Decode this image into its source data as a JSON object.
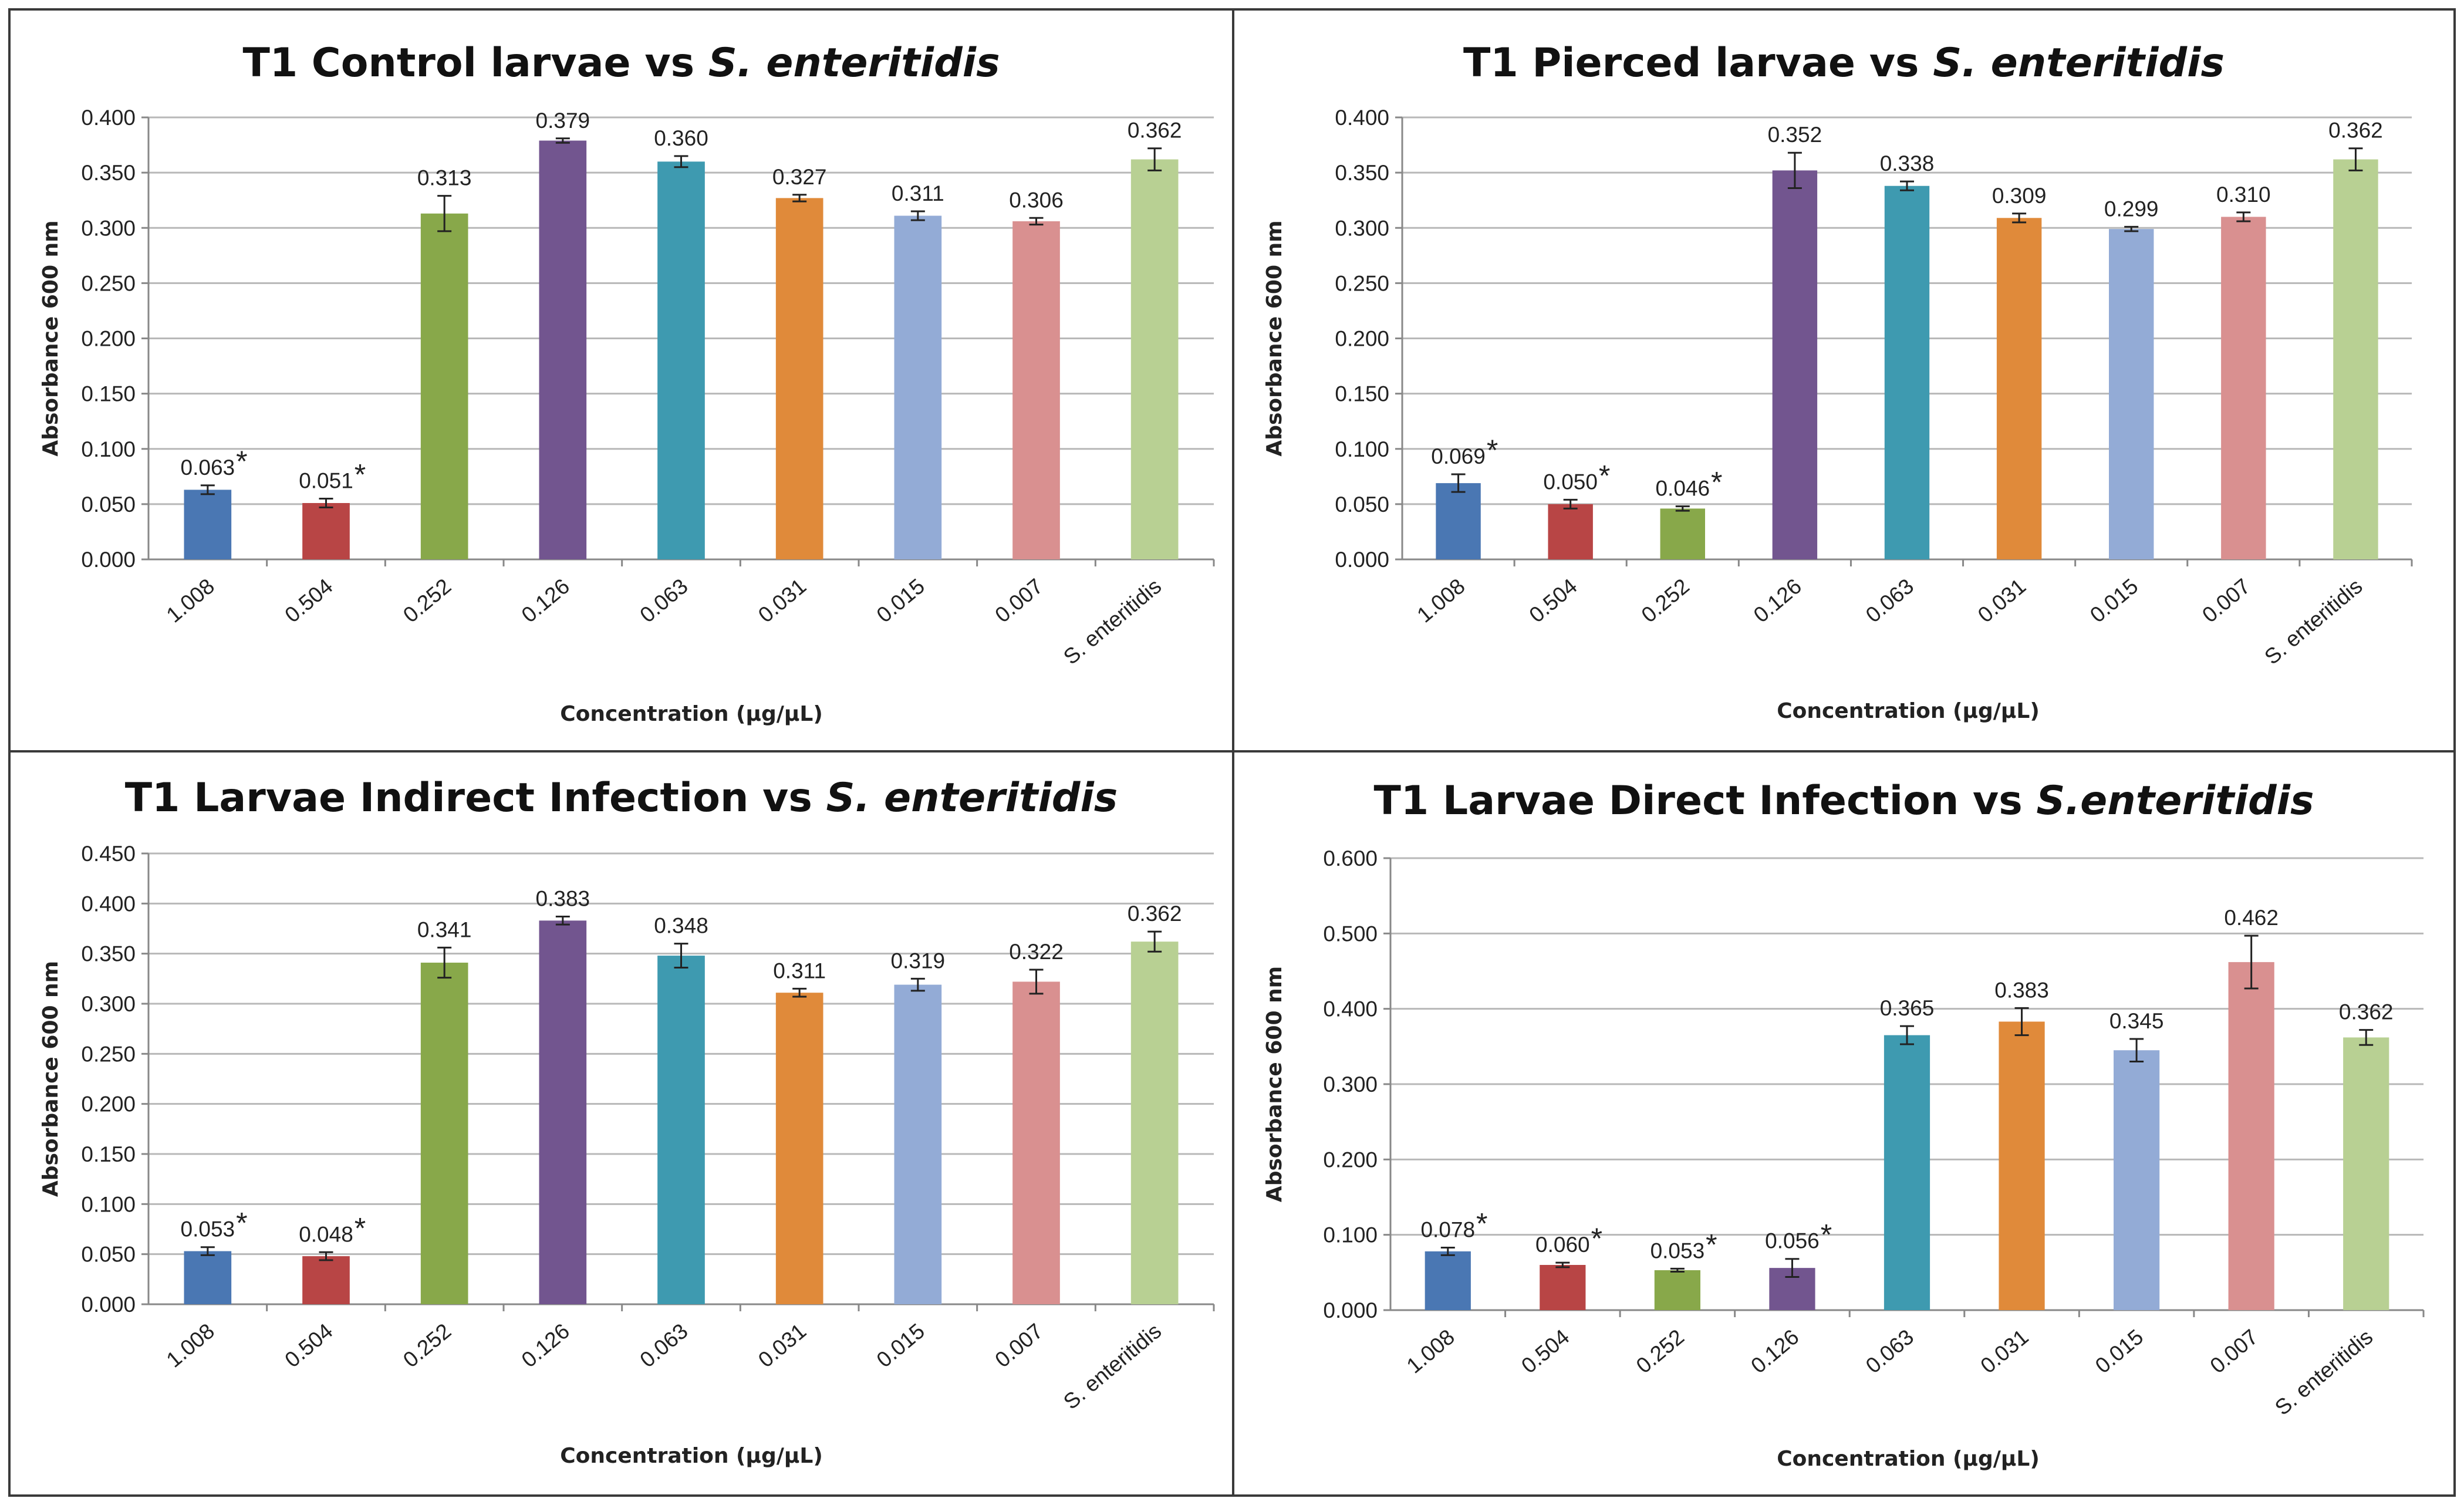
{
  "colors": {
    "bars": [
      "#4a77b3",
      "#b84545",
      "#88a84a",
      "#72558f",
      "#3e9ab0",
      "#e08a3a",
      "#93abd6",
      "#d99090",
      "#b8d093"
    ],
    "gridline": "#b8b8b8",
    "axis": "#888888",
    "border": "#3a3a3a"
  },
  "chart_data": [
    {
      "type": "bar",
      "title_prefix": "T1 Control larvae vs ",
      "title_species": "S. enteritidis",
      "xlabel": "Concentration (µg/µL)",
      "ylabel": "Absorbance 600 nm",
      "ylim": [
        0,
        0.4
      ],
      "yticks": [
        "0.000",
        "0.050",
        "0.100",
        "0.150",
        "0.200",
        "0.250",
        "0.300",
        "0.350",
        "0.400"
      ],
      "categories": [
        "1.008",
        "0.504",
        "0.252",
        "0.126",
        "0.063",
        "0.031",
        "0.015",
        "0.007",
        "S. enteritidis"
      ],
      "values": [
        0.063,
        0.051,
        0.313,
        0.379,
        0.36,
        0.327,
        0.311,
        0.306,
        0.362
      ],
      "labels": [
        "0.063",
        "0.051",
        "0.313",
        "0.379",
        "0.360",
        "0.327",
        "0.311",
        "0.306",
        "0.362"
      ],
      "errors": [
        0.004,
        0.004,
        0.016,
        0.002,
        0.005,
        0.003,
        0.004,
        0.003,
        0.01
      ],
      "significant": [
        true,
        true,
        false,
        false,
        false,
        false,
        false,
        false,
        false
      ],
      "significance_marker": "*"
    },
    {
      "type": "bar",
      "title_prefix": "T1 Pierced larvae vs ",
      "title_species": "S. enteritidis",
      "xlabel": "Concentration (µg/µL)",
      "ylabel": "Absorbance 600 nm",
      "ylim": [
        0,
        0.4
      ],
      "yticks": [
        "0.000",
        "0.050",
        "0.100",
        "0.150",
        "0.200",
        "0.250",
        "0.300",
        "0.350",
        "0.400"
      ],
      "categories": [
        "1.008",
        "0.504",
        "0.252",
        "0.126",
        "0.063",
        "0.031",
        "0.015",
        "0.007",
        "S. enteritidis"
      ],
      "values": [
        0.069,
        0.05,
        0.046,
        0.352,
        0.338,
        0.309,
        0.299,
        0.31,
        0.362
      ],
      "labels": [
        "0.069",
        "0.050",
        "0.046",
        "0.352",
        "0.338",
        "0.309",
        "0.299",
        "0.310",
        "0.362"
      ],
      "errors": [
        0.008,
        0.004,
        0.002,
        0.016,
        0.004,
        0.004,
        0.002,
        0.004,
        0.01
      ],
      "significant": [
        true,
        true,
        true,
        false,
        false,
        false,
        false,
        false,
        false
      ],
      "significance_marker": "*"
    },
    {
      "type": "bar",
      "title_prefix": "T1 Larvae Indirect Infection vs ",
      "title_species": "S. enteritidis",
      "xlabel": "Concentration (µg/µL)",
      "ylabel": "Absorbance 600 nm",
      "ylim": [
        0,
        0.45
      ],
      "yticks": [
        "0.000",
        "0.050",
        "0.100",
        "0.150",
        "0.200",
        "0.250",
        "0.300",
        "0.350",
        "0.400",
        "0.450"
      ],
      "categories": [
        "1.008",
        "0.504",
        "0.252",
        "0.126",
        "0.063",
        "0.031",
        "0.015",
        "0.007",
        "S. enteritidis"
      ],
      "values": [
        0.053,
        0.048,
        0.341,
        0.383,
        0.348,
        0.311,
        0.319,
        0.322,
        0.362
      ],
      "labels": [
        "0.053",
        "0.048",
        "0.341",
        "0.383",
        "0.348",
        "0.311",
        "0.319",
        "0.322",
        "0.362"
      ],
      "errors": [
        0.004,
        0.004,
        0.015,
        0.004,
        0.012,
        0.004,
        0.006,
        0.012,
        0.01
      ],
      "significant": [
        true,
        true,
        false,
        false,
        false,
        false,
        false,
        false,
        false
      ],
      "significance_marker": "*"
    },
    {
      "type": "bar",
      "title_prefix": "T1 Larvae Direct Infection vs ",
      "title_species": "S.enteritidis",
      "xlabel": "Concentration (µg/µL)",
      "ylabel": "Absorbance 600 nm",
      "ylim": [
        0,
        0.6
      ],
      "yticks": [
        "0.000",
        "0.100",
        "0.200",
        "0.300",
        "0.400",
        "0.500",
        "0.600"
      ],
      "categories": [
        "1.008",
        "0.504",
        "0.252",
        "0.126",
        "0.063",
        "0.031",
        "0.015",
        "0.007",
        "S. enteritidis"
      ],
      "values": [
        0.078,
        0.06,
        0.053,
        0.056,
        0.365,
        0.383,
        0.345,
        0.462,
        0.362
      ],
      "labels": [
        "0.078",
        "0.060",
        "0.053",
        "0.056",
        "0.365",
        "0.383",
        "0.345",
        "0.462",
        "0.362"
      ],
      "errors": [
        0.005,
        0.003,
        0.002,
        0.012,
        0.012,
        0.018,
        0.015,
        0.035,
        0.01
      ],
      "significant": [
        true,
        true,
        true,
        true,
        false,
        false,
        false,
        false,
        false
      ],
      "significance_marker": "*"
    }
  ]
}
